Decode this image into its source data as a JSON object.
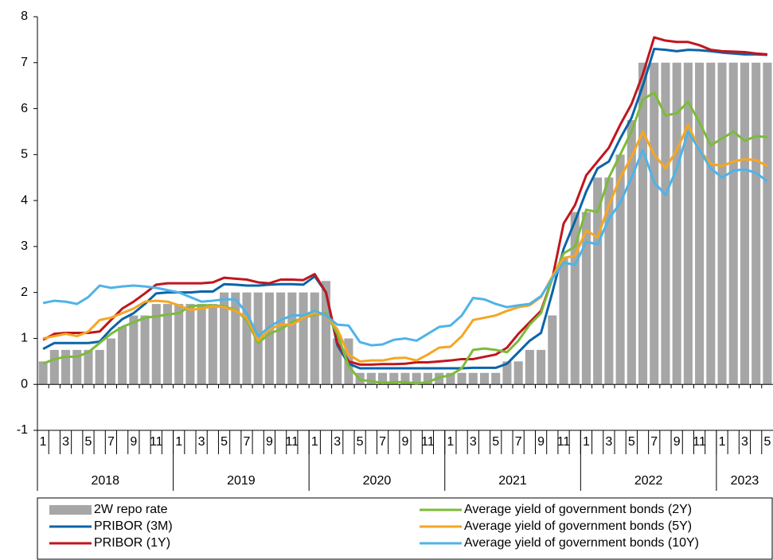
{
  "chart_data": {
    "type": "bar-line",
    "categories": [
      "1",
      null,
      "3",
      null,
      "5",
      null,
      "7",
      null,
      "9",
      null,
      "11",
      null,
      "1",
      null,
      "3",
      null,
      "5",
      null,
      "7",
      null,
      "9",
      null,
      "11",
      null,
      "1",
      null,
      "3",
      null,
      "5",
      null,
      "7",
      null,
      "9",
      null,
      "11",
      null,
      "1",
      null,
      "3",
      null,
      "5",
      null,
      "7",
      null,
      "9",
      null,
      "11",
      null,
      "1",
      null,
      "3",
      null,
      "5",
      null,
      "7",
      null,
      "9",
      null,
      "11",
      null,
      "1",
      null,
      "3",
      null,
      "5"
    ],
    "years": [
      "2018",
      "2019",
      "2020",
      "2021",
      "2022",
      "2023"
    ],
    "ylim": [
      -1,
      8
    ],
    "yticks": [
      -1,
      0,
      1,
      2,
      3,
      4,
      5,
      6,
      7,
      8
    ],
    "series": [
      {
        "name": "2W repo rate",
        "type": "bar",
        "color": "#a6a6a6",
        "values": [
          0.5,
          0.75,
          0.75,
          0.75,
          0.75,
          0.75,
          1.0,
          1.25,
          1.5,
          1.5,
          1.75,
          1.75,
          1.75,
          1.75,
          1.75,
          1.75,
          2.0,
          2.0,
          2.0,
          2.0,
          2.0,
          2.0,
          2.0,
          2.0,
          2.0,
          2.25,
          1.0,
          1.0,
          0.25,
          0.25,
          0.25,
          0.25,
          0.25,
          0.25,
          0.25,
          0.25,
          0.25,
          0.25,
          0.25,
          0.25,
          0.25,
          0.5,
          0.5,
          0.75,
          0.75,
          1.5,
          2.75,
          3.75,
          3.75,
          4.5,
          4.5,
          5.0,
          5.75,
          7.0,
          7.0,
          7.0,
          7.0,
          7.0,
          7.0,
          7.0,
          7.0,
          7.0,
          7.0,
          7.0,
          7.0
        ]
      },
      {
        "name": "PRIBOR (3M)",
        "type": "line",
        "color": "#0b64a8",
        "values": [
          0.77,
          0.9,
          0.9,
          0.9,
          0.9,
          0.93,
          1.2,
          1.42,
          1.55,
          1.75,
          1.98,
          2.0,
          2.0,
          2.0,
          2.02,
          2.02,
          2.18,
          2.17,
          2.15,
          2.15,
          2.17,
          2.18,
          2.18,
          2.17,
          2.35,
          2.0,
          0.85,
          0.45,
          0.35,
          0.35,
          0.35,
          0.35,
          0.35,
          0.35,
          0.35,
          0.35,
          0.35,
          0.35,
          0.36,
          0.36,
          0.36,
          0.45,
          0.7,
          0.95,
          1.12,
          2.0,
          2.95,
          3.55,
          4.2,
          4.7,
          4.85,
          5.35,
          5.8,
          6.5,
          7.3,
          7.28,
          7.25,
          7.28,
          7.27,
          7.25,
          7.22,
          7.2,
          7.18,
          7.18,
          7.17
        ]
      },
      {
        "name": "PRIBOR (1Y)",
        "type": "line",
        "color": "#c0161d",
        "values": [
          0.97,
          1.1,
          1.12,
          1.12,
          1.12,
          1.15,
          1.4,
          1.65,
          1.8,
          1.98,
          2.17,
          2.2,
          2.2,
          2.2,
          2.2,
          2.22,
          2.32,
          2.3,
          2.28,
          2.22,
          2.2,
          2.28,
          2.28,
          2.27,
          2.4,
          2.0,
          0.9,
          0.5,
          0.43,
          0.43,
          0.44,
          0.44,
          0.45,
          0.48,
          0.48,
          0.5,
          0.52,
          0.55,
          0.55,
          0.6,
          0.65,
          0.8,
          1.1,
          1.35,
          1.6,
          2.3,
          3.5,
          3.9,
          4.55,
          4.85,
          5.15,
          5.65,
          6.1,
          6.75,
          7.55,
          7.48,
          7.45,
          7.45,
          7.38,
          7.28,
          7.25,
          7.24,
          7.23,
          7.2,
          7.18
        ]
      },
      {
        "name": "Average yield of government bonds (2Y)",
        "type": "line",
        "color": "#7cbb3a",
        "values": [
          0.45,
          0.55,
          0.6,
          0.6,
          0.7,
          0.9,
          1.1,
          1.25,
          1.35,
          1.45,
          1.48,
          1.52,
          1.55,
          1.7,
          1.72,
          1.72,
          1.7,
          1.62,
          1.4,
          0.9,
          1.1,
          1.2,
          1.35,
          1.45,
          1.52,
          1.55,
          1.1,
          0.4,
          0.1,
          0.07,
          0.03,
          0.05,
          0.05,
          0.02,
          0.05,
          0.15,
          0.2,
          0.35,
          0.75,
          0.78,
          0.75,
          0.7,
          0.95,
          1.3,
          1.55,
          2.3,
          2.85,
          3.0,
          3.8,
          3.75,
          4.5,
          5.0,
          5.5,
          6.2,
          6.35,
          5.85,
          5.9,
          6.15,
          5.7,
          5.2,
          5.35,
          5.5,
          5.3,
          5.4,
          5.38
        ]
      },
      {
        "name": "Average yield of government bonds (5Y)",
        "type": "line",
        "color": "#f5a623",
        "values": [
          1.0,
          1.05,
          1.1,
          1.05,
          1.15,
          1.4,
          1.45,
          1.55,
          1.65,
          1.8,
          1.82,
          1.8,
          1.72,
          1.62,
          1.65,
          1.7,
          1.68,
          1.6,
          1.45,
          0.95,
          1.2,
          1.3,
          1.3,
          1.45,
          1.55,
          1.5,
          1.2,
          0.65,
          0.5,
          0.52,
          0.52,
          0.57,
          0.58,
          0.52,
          0.65,
          0.8,
          0.82,
          1.05,
          1.4,
          1.45,
          1.5,
          1.6,
          1.68,
          1.72,
          1.9,
          2.35,
          2.75,
          2.8,
          3.35,
          3.2,
          3.9,
          4.5,
          4.95,
          5.5,
          5.0,
          4.7,
          5.1,
          5.65,
          5.1,
          4.8,
          4.75,
          4.85,
          4.9,
          4.88,
          4.75
        ]
      },
      {
        "name": "Average yield of government bonds (10Y)",
        "type": "line",
        "color": "#4fb3e8",
        "values": [
          1.77,
          1.82,
          1.8,
          1.75,
          1.9,
          2.15,
          2.1,
          2.13,
          2.15,
          2.13,
          2.1,
          2.05,
          2.0,
          1.9,
          1.8,
          1.82,
          1.85,
          1.85,
          1.55,
          1.05,
          1.25,
          1.4,
          1.5,
          1.5,
          1.6,
          1.5,
          1.3,
          1.28,
          0.92,
          0.85,
          0.87,
          0.97,
          1.0,
          0.95,
          1.1,
          1.25,
          1.28,
          1.5,
          1.88,
          1.85,
          1.75,
          1.68,
          1.72,
          1.75,
          1.92,
          2.3,
          2.65,
          2.6,
          3.1,
          3.05,
          3.6,
          3.95,
          4.5,
          5.1,
          4.4,
          4.12,
          4.7,
          5.5,
          5.1,
          4.7,
          4.5,
          4.65,
          4.68,
          4.6,
          4.42
        ]
      }
    ]
  }
}
